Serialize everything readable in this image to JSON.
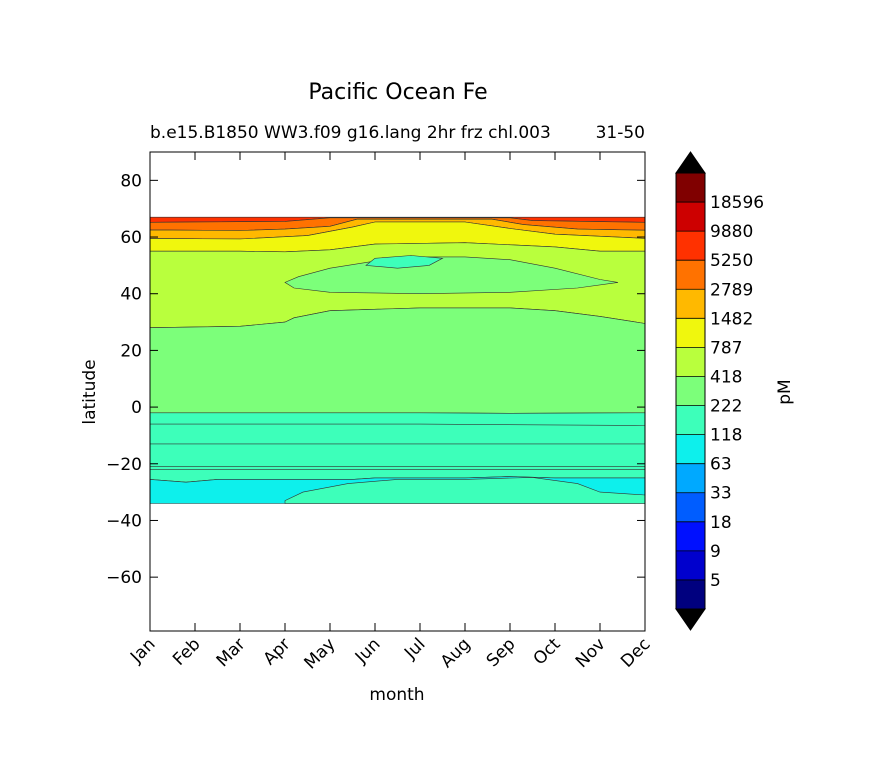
{
  "chart_data": {
    "type": "contour",
    "title": "Pacific Ocean Fe",
    "subtitle_left": "b.e15.B1850 WW3.f09 g16.lang 2hr frz chl.003",
    "subtitle_right": "31-50",
    "xlabel": "month",
    "ylabel": "latitude",
    "x_categories": [
      "Jan",
      "Feb",
      "Mar",
      "Apr",
      "May",
      "Jun",
      "Jul",
      "Aug",
      "Sep",
      "Oct",
      "Nov",
      "Dec"
    ],
    "yticks": [
      80,
      60,
      40,
      20,
      0,
      -20,
      -40,
      -60
    ],
    "ytick_labels": [
      "80",
      "60",
      "40",
      "20",
      "0",
      "−20",
      "−40",
      "−60"
    ],
    "ylim": [
      -79,
      90
    ],
    "data_lat_range": [
      -34,
      67
    ],
    "colorbar": {
      "label": "pM",
      "extend": "both",
      "levels": [
        "5",
        "9",
        "18",
        "33",
        "63",
        "118",
        "222",
        "418",
        "787",
        "1482",
        "2789",
        "5250",
        "9880",
        "18596"
      ],
      "colors": [
        "#00007f",
        "#0000cd",
        "#0010ff",
        "#005dff",
        "#00a9ff",
        "#0df0ec",
        "#3dffba",
        "#7cff7a",
        "#b9ff3d",
        "#f0f70d",
        "#ffb900",
        "#ff7200",
        "#ff3100",
        "#cd0000",
        "#800000"
      ],
      "under_color": "#000000",
      "over_color": "#000000"
    },
    "bands": [
      {
        "level_index": 12,
        "lat_range": [
          65,
          67
        ],
        "months": "all"
      },
      {
        "level_index": 11,
        "lat_range": [
          62,
          65
        ],
        "months": "Jan-Apr, Oct-Dec"
      },
      {
        "level_index": 10,
        "lat_range": [
          59,
          62
        ],
        "months": "Jan-Apr, Sep-Dec"
      },
      {
        "level_index": 9,
        "lat_range": [
          54,
          58
        ],
        "months": "all"
      },
      {
        "level_index": 8,
        "lat_range": [
          28,
          54
        ],
        "months": "all"
      },
      {
        "level_index": 7,
        "lat_range": [
          -2,
          40
        ],
        "months": "all"
      },
      {
        "level_index": 6,
        "lat_range": [
          -25,
          -2
        ],
        "months": "all"
      },
      {
        "level_index": 5,
        "lat_range": [
          -34,
          -25
        ],
        "months": "all"
      }
    ]
  }
}
